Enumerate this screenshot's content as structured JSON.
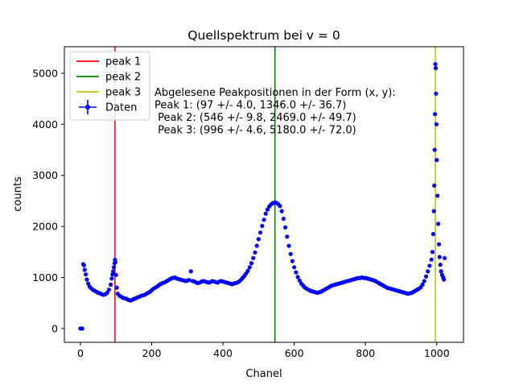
{
  "chart_data": {
    "type": "scatter",
    "title": "Quellspektrum bei v = 0",
    "xlabel": "Chanel",
    "ylabel": "counts",
    "xlim": [
      -45,
      1075
    ],
    "ylim": [
      -270,
      5520
    ],
    "xticks": [
      0,
      200,
      400,
      600,
      800,
      1000
    ],
    "yticks": [
      0,
      1000,
      2000,
      3000,
      4000,
      5000
    ],
    "grid": false,
    "legend_position": "top-left",
    "legend": [
      {
        "label": "peak 1",
        "kind": "line",
        "color": "#ff0000"
      },
      {
        "label": "peak 2",
        "kind": "line",
        "color": "#008000"
      },
      {
        "label": "peak 3",
        "kind": "line",
        "color": "#bfbf00"
      },
      {
        "label": "Daten",
        "kind": "errorbar-marker",
        "color": "#0000ff"
      }
    ],
    "vlines": [
      {
        "name": "peak 1",
        "x": 97,
        "color": "#ff0000"
      },
      {
        "name": "peak 2",
        "x": 546,
        "color": "#008000"
      },
      {
        "name": "peak 3",
        "x": 996,
        "color": "#bfbf00"
      }
    ],
    "annotation": [
      "Abgelesene Peakpositionen in der Form (x, y):",
      "Peak 1: (97 +/- 4.0, 1346.0 +/- 36.7)",
      " Peak 2: (546 +/- 9.8, 2469.0 +/- 49.7)",
      " Peak 3: (996 +/- 4.6, 5180.0 +/- 72.0)"
    ],
    "series": [
      {
        "name": "Daten",
        "color": "#0000ff",
        "points": [
          [
            0,
            0
          ],
          [
            5,
            0
          ],
          [
            8,
            1260
          ],
          [
            10,
            1240
          ],
          [
            12,
            1150
          ],
          [
            15,
            1060
          ],
          [
            18,
            960
          ],
          [
            22,
            880
          ],
          [
            26,
            820
          ],
          [
            30,
            790
          ],
          [
            35,
            760
          ],
          [
            40,
            740
          ],
          [
            45,
            720
          ],
          [
            50,
            700
          ],
          [
            55,
            690
          ],
          [
            60,
            670
          ],
          [
            65,
            660
          ],
          [
            70,
            670
          ],
          [
            75,
            700
          ],
          [
            80,
            760
          ],
          [
            85,
            860
          ],
          [
            88,
            980
          ],
          [
            90,
            1060
          ],
          [
            92,
            1120
          ],
          [
            94,
            1200
          ],
          [
            96,
            1280
          ],
          [
            97,
            1346
          ],
          [
            98,
            1300
          ],
          [
            100,
            1050
          ],
          [
            102,
            800
          ],
          [
            105,
            680
          ],
          [
            110,
            640
          ],
          [
            115,
            620
          ],
          [
            120,
            600
          ],
          [
            125,
            590
          ],
          [
            130,
            580
          ],
          [
            135,
            560
          ],
          [
            140,
            550
          ],
          [
            145,
            560
          ],
          [
            150,
            580
          ],
          [
            155,
            590
          ],
          [
            160,
            610
          ],
          [
            165,
            620
          ],
          [
            170,
            640
          ],
          [
            175,
            650
          ],
          [
            180,
            660
          ],
          [
            185,
            680
          ],
          [
            190,
            700
          ],
          [
            195,
            720
          ],
          [
            200,
            750
          ],
          [
            205,
            780
          ],
          [
            210,
            800
          ],
          [
            215,
            820
          ],
          [
            220,
            850
          ],
          [
            225,
            870
          ],
          [
            230,
            890
          ],
          [
            235,
            900
          ],
          [
            240,
            920
          ],
          [
            245,
            940
          ],
          [
            250,
            960
          ],
          [
            255,
            980
          ],
          [
            260,
            990
          ],
          [
            265,
            1000
          ],
          [
            270,
            980
          ],
          [
            275,
            970
          ],
          [
            280,
            960
          ],
          [
            285,
            950
          ],
          [
            290,
            940
          ],
          [
            295,
            930
          ],
          [
            300,
            940
          ],
          [
            305,
            950
          ],
          [
            310,
            1120
          ],
          [
            315,
            930
          ],
          [
            320,
            920
          ],
          [
            325,
            900
          ],
          [
            330,
            890
          ],
          [
            335,
            900
          ],
          [
            340,
            920
          ],
          [
            345,
            930
          ],
          [
            350,
            920
          ],
          [
            355,
            910
          ],
          [
            360,
            900
          ],
          [
            365,
            910
          ],
          [
            370,
            930
          ],
          [
            375,
            920
          ],
          [
            380,
            910
          ],
          [
            385,
            900
          ],
          [
            390,
            920
          ],
          [
            395,
            930
          ],
          [
            400,
            920
          ],
          [
            405,
            910
          ],
          [
            410,
            900
          ],
          [
            415,
            890
          ],
          [
            420,
            880
          ],
          [
            425,
            870
          ],
          [
            430,
            880
          ],
          [
            435,
            890
          ],
          [
            440,
            900
          ],
          [
            445,
            920
          ],
          [
            450,
            950
          ],
          [
            455,
            990
          ],
          [
            460,
            1030
          ],
          [
            465,
            1080
          ],
          [
            470,
            1130
          ],
          [
            475,
            1200
          ],
          [
            480,
            1280
          ],
          [
            485,
            1380
          ],
          [
            490,
            1490
          ],
          [
            495,
            1620
          ],
          [
            500,
            1750
          ],
          [
            505,
            1880
          ],
          [
            510,
            2010
          ],
          [
            515,
            2130
          ],
          [
            520,
            2250
          ],
          [
            525,
            2330
          ],
          [
            530,
            2390
          ],
          [
            535,
            2430
          ],
          [
            540,
            2455
          ],
          [
            546,
            2469
          ],
          [
            550,
            2460
          ],
          [
            555,
            2440
          ],
          [
            560,
            2400
          ],
          [
            565,
            2300
          ],
          [
            570,
            2150
          ],
          [
            575,
            1980
          ],
          [
            580,
            1800
          ],
          [
            585,
            1620
          ],
          [
            590,
            1460
          ],
          [
            595,
            1320
          ],
          [
            600,
            1200
          ],
          [
            605,
            1100
          ],
          [
            610,
            1010
          ],
          [
            615,
            940
          ],
          [
            620,
            880
          ],
          [
            625,
            840
          ],
          [
            630,
            800
          ],
          [
            635,
            780
          ],
          [
            640,
            760
          ],
          [
            645,
            740
          ],
          [
            650,
            730
          ],
          [
            655,
            720
          ],
          [
            660,
            710
          ],
          [
            665,
            700
          ],
          [
            670,
            710
          ],
          [
            675,
            720
          ],
          [
            680,
            740
          ],
          [
            685,
            760
          ],
          [
            690,
            780
          ],
          [
            695,
            800
          ],
          [
            700,
            820
          ],
          [
            705,
            840
          ],
          [
            710,
            850
          ],
          [
            715,
            860
          ],
          [
            720,
            870
          ],
          [
            725,
            880
          ],
          [
            730,
            890
          ],
          [
            735,
            900
          ],
          [
            740,
            910
          ],
          [
            745,
            920
          ],
          [
            750,
            930
          ],
          [
            755,
            940
          ],
          [
            760,
            950
          ],
          [
            765,
            960
          ],
          [
            770,
            970
          ],
          [
            775,
            980
          ],
          [
            780,
            990
          ],
          [
            785,
            990
          ],
          [
            790,
            1000
          ],
          [
            795,
            990
          ],
          [
            800,
            990
          ],
          [
            805,
            980
          ],
          [
            810,
            970
          ],
          [
            815,
            960
          ],
          [
            820,
            950
          ],
          [
            825,
            940
          ],
          [
            830,
            920
          ],
          [
            835,
            900
          ],
          [
            840,
            880
          ],
          [
            845,
            860
          ],
          [
            850,
            840
          ],
          [
            855,
            820
          ],
          [
            860,
            800
          ],
          [
            865,
            790
          ],
          [
            870,
            780
          ],
          [
            875,
            770
          ],
          [
            880,
            760
          ],
          [
            885,
            750
          ],
          [
            890,
            740
          ],
          [
            895,
            730
          ],
          [
            900,
            720
          ],
          [
            905,
            710
          ],
          [
            910,
            700
          ],
          [
            915,
            690
          ],
          [
            920,
            680
          ],
          [
            925,
            690
          ],
          [
            930,
            700
          ],
          [
            935,
            720
          ],
          [
            940,
            740
          ],
          [
            945,
            760
          ],
          [
            950,
            780
          ],
          [
            955,
            810
          ],
          [
            960,
            860
          ],
          [
            965,
            930
          ],
          [
            970,
            1020
          ],
          [
            975,
            1120
          ],
          [
            980,
            1230
          ],
          [
            985,
            1350
          ],
          [
            988,
            1500
          ],
          [
            990,
            1850
          ],
          [
            992,
            2300
          ],
          [
            993,
            2800
          ],
          [
            994,
            3500
          ],
          [
            995,
            4200
          ],
          [
            996,
            5180
          ],
          [
            997,
            5100
          ],
          [
            998,
            4600
          ],
          [
            999,
            4000
          ],
          [
            1000,
            3300
          ],
          [
            1002,
            2600
          ],
          [
            1004,
            2050
          ],
          [
            1006,
            1650
          ],
          [
            1008,
            1400
          ],
          [
            1010,
            1250
          ],
          [
            1012,
            1120
          ],
          [
            1015,
            1050
          ],
          [
            1018,
            1000
          ],
          [
            1020,
            960
          ],
          [
            1022,
            1380
          ]
        ]
      }
    ]
  }
}
